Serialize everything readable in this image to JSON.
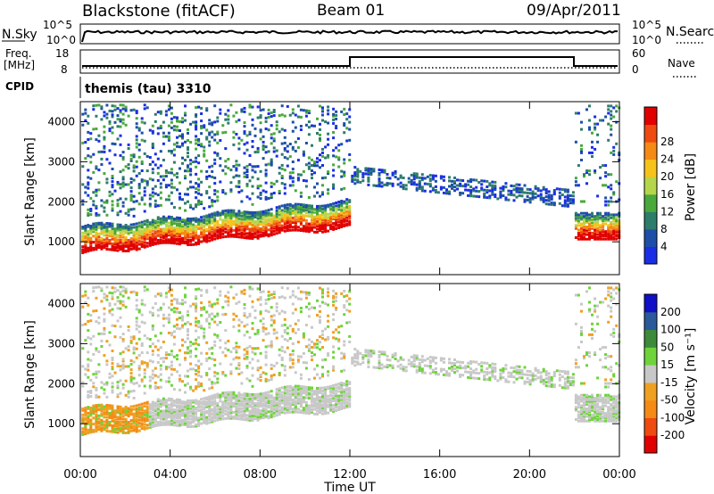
{
  "header": {
    "site": "Blackstone (fitACF)",
    "beam": "Beam 01",
    "date": "09/Apr/2011",
    "cpid_label": "CPID",
    "cpid_value": "themis (tau) 3310"
  },
  "panels": {
    "nsky": {
      "left_label": "N.Sky",
      "right_label": "N.Search",
      "tick_top": "10^5",
      "tick_bottom": "10^0"
    },
    "freq": {
      "left_label_1": "Freq.",
      "left_label_2": "[MHz]",
      "right_label": "Nave",
      "ticks_left": [
        "18",
        "8"
      ],
      "ticks_right": [
        "60",
        "0"
      ]
    }
  },
  "chart_data": [
    {
      "type": "heatmap",
      "name": "power",
      "ylabel": "Slant Range [km]",
      "ylim": [
        180,
        4500
      ],
      "yticks": [
        1000,
        2000,
        3000,
        4000
      ],
      "colorbar_label": "Power [dB]",
      "colorbar_ticks": [
        "4",
        "8",
        "12",
        "16",
        "20",
        "24",
        "28"
      ],
      "colors": [
        "#1a2ee6",
        "#1e4fa8",
        "#2e7c6a",
        "#49a93a",
        "#b5d64a",
        "#f5c31a",
        "#f58a14",
        "#ef4a0f",
        "#e00000"
      ],
      "grid": false
    },
    {
      "type": "heatmap",
      "name": "velocity",
      "ylabel": "Slant Range [km]",
      "ylim": [
        180,
        4500
      ],
      "yticks": [
        1000,
        2000,
        3000,
        4000
      ],
      "xlabel": "Time UT",
      "xticks": [
        "00:00",
        "04:00",
        "08:00",
        "12:00",
        "16:00",
        "20:00",
        "00:00"
      ],
      "colorbar_label": "Velocity [m s⁻¹]",
      "colorbar_ticks": [
        "200",
        "100",
        "50",
        "15",
        "-15",
        "-50",
        "-100",
        "-200"
      ],
      "colors": [
        "#1010c8",
        "#2a5a9a",
        "#3d8a3a",
        "#6ed43a",
        "#c8c8c8",
        "#f0a020",
        "#f58a14",
        "#ef4a0f",
        "#e00000"
      ],
      "grid": false
    }
  ]
}
